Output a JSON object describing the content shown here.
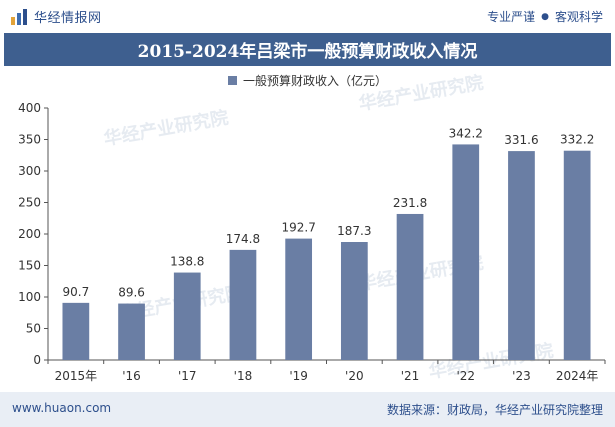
{
  "header": {
    "brand": "华经情报网",
    "tagline_left": "专业严谨",
    "tagline_right": "客观科学"
  },
  "colors": {
    "bar": "#6a7ea4",
    "title_bg": "#3e5f8f",
    "brand": "#2d4f8c",
    "footer_bg": "#e9eef5"
  },
  "footer": {
    "url": "www.huaon.com",
    "source": "数据来源：财政局，华经产业研究院整理"
  },
  "chart_data": {
    "type": "bar",
    "title": "2015-2024年吕梁市一般预算财政收入情况",
    "categories": [
      "2015年",
      "'16",
      "'17",
      "'18",
      "'19",
      "'20",
      "'21",
      "'22",
      "'23",
      "2024年"
    ],
    "series": [
      {
        "name": "一般预算财政收入（亿元）",
        "values": [
          90.7,
          89.6,
          138.8,
          174.8,
          192.7,
          187.3,
          231.8,
          342.2,
          331.6,
          332.2
        ]
      }
    ],
    "ylim": [
      0,
      400
    ],
    "yticks": [
      0,
      50,
      100,
      150,
      200,
      250,
      300,
      350,
      400
    ],
    "grid": false,
    "legend": "top-center"
  }
}
